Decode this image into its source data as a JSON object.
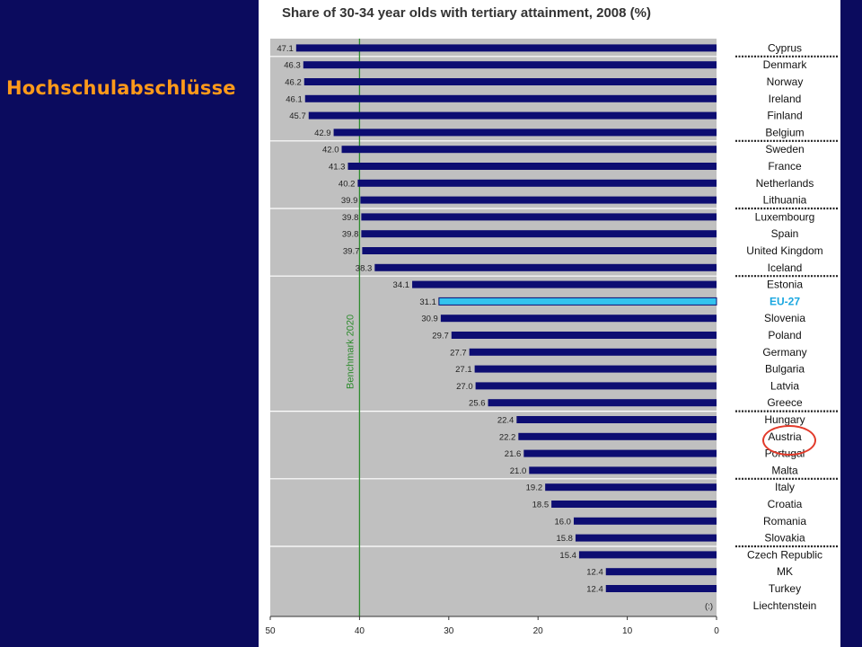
{
  "slide": {
    "title": "Hochschulabschlüsse"
  },
  "chart_data": {
    "type": "bar",
    "orientation": "horizontal",
    "title": "Share of 30-34 year olds with tertiary attainment, 2008 (%)",
    "categories": [
      "Cyprus",
      "Denmark",
      "Norway",
      "Ireland",
      "Finland",
      "Belgium",
      "Sweden",
      "France",
      "Netherlands",
      "Lithuania",
      "Luxembourg",
      "Spain",
      "United Kingdom",
      "Iceland",
      "Estonia",
      "EU-27",
      "Slovenia",
      "Poland",
      "Germany",
      "Bulgaria",
      "Latvia",
      "Greece",
      "Hungary",
      "Austria",
      "Portugal",
      "Malta",
      "Italy",
      "Croatia",
      "Romania",
      "Slovakia",
      "Czech Republic",
      "MK",
      "Turkey",
      "Liechtenstein"
    ],
    "values": [
      47.1,
      46.3,
      46.2,
      46.1,
      45.7,
      42.9,
      42.0,
      41.3,
      40.2,
      39.9,
      39.8,
      39.8,
      39.7,
      38.3,
      34.1,
      31.1,
      30.9,
      29.7,
      27.7,
      27.1,
      27.0,
      25.6,
      22.4,
      22.2,
      21.6,
      21.0,
      19.2,
      18.5,
      16.0,
      15.8,
      15.4,
      12.4,
      12.4,
      null
    ],
    "value_labels": [
      "47.1",
      "46.3",
      "46.2",
      "46.1",
      "45.7",
      "42.9",
      "42.0",
      "41.3",
      "40.2",
      "39.9",
      "39.8",
      "39.8",
      "39.7",
      "38.3",
      "34.1",
      "31.1",
      "30.9",
      "29.7",
      "27.7",
      "27.1",
      "27.0",
      "25.6",
      "22.4",
      "22.2",
      "21.6",
      "21.0",
      "19.2",
      "18.5",
      "16.0",
      "15.8",
      "15.4",
      "12.4",
      "12.4",
      "(:)"
    ],
    "highlight": "EU-27",
    "circled": "Austria",
    "group_breaks_after": [
      "Cyprus",
      "Belgium",
      "Lithuania",
      "Iceland",
      "Greece",
      "Malta",
      "Slovakia"
    ],
    "benchmark": {
      "value": 40,
      "label": "Benchmark 2020"
    },
    "xlim": [
      50,
      0
    ],
    "xticks": [
      "50",
      "40",
      "30",
      "20",
      "10",
      "0"
    ],
    "colors": {
      "bar": "#0d0d72",
      "highlight": "#33c3ee",
      "highlight_text": "#1aa7e0",
      "benchmark": "#2e8b2e",
      "plot_bg": "#c0c0c0",
      "circle": "#e23a2a"
    }
  }
}
